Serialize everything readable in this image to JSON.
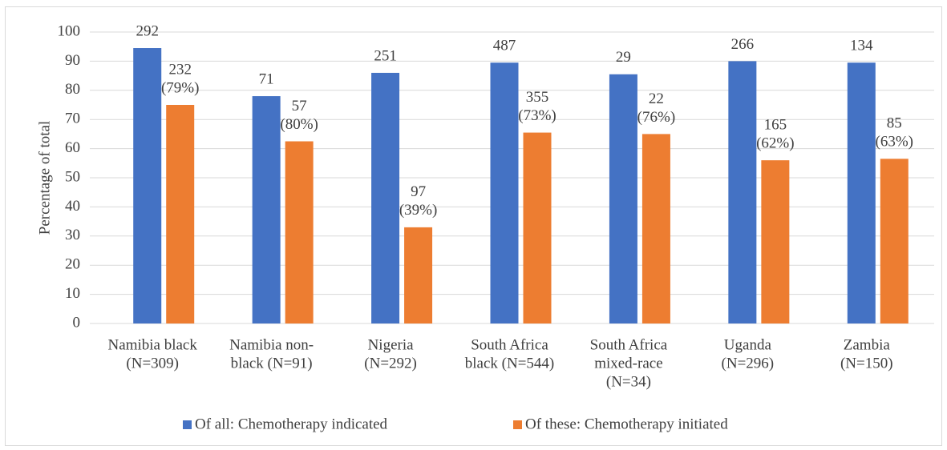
{
  "chart_data": {
    "type": "bar",
    "y_label": "Percentage of total",
    "categories": [
      [
        "Namibia black",
        "(N=309)"
      ],
      [
        "Namibia non-",
        "black (N=91)"
      ],
      [
        "Nigeria",
        "(N=292)"
      ],
      [
        "South Africa",
        "black (N=544)"
      ],
      [
        "South Africa",
        "mixed-race",
        "(N=34)"
      ],
      [
        "Uganda",
        "(N=296)"
      ],
      [
        "Zambia",
        "(N=150)"
      ]
    ],
    "series": [
      {
        "name": "Of all: Chemotherapy indicated",
        "color": "#4472c4",
        "values": [
          94.5,
          78,
          86,
          89.5,
          85.5,
          90,
          89.5
        ],
        "data_labels": [
          [
            "292"
          ],
          [
            "71"
          ],
          [
            "251"
          ],
          [
            "487"
          ],
          [
            "29"
          ],
          [
            "266"
          ],
          [
            "134"
          ]
        ]
      },
      {
        "name": "Of these: Chemotherapy initiated",
        "color": "#ed7d31",
        "values": [
          75,
          62.5,
          33,
          65.5,
          65,
          56,
          56.5
        ],
        "data_labels": [
          [
            "232",
            "(79%)"
          ],
          [
            "57",
            "(80%)"
          ],
          [
            "97",
            "(39%)"
          ],
          [
            "355",
            "(73%)"
          ],
          [
            "22",
            "(76%)"
          ],
          [
            "165",
            "(62%)"
          ],
          [
            "85",
            "(63%)"
          ]
        ]
      }
    ],
    "ylim": [
      0,
      100
    ],
    "yticks": [
      0,
      10,
      20,
      30,
      40,
      50,
      60,
      70,
      80,
      90,
      100
    ],
    "grid": true
  }
}
